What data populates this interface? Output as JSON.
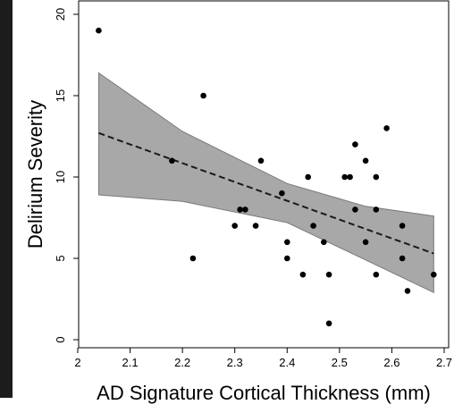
{
  "chart_data": {
    "type": "scatter",
    "xlabel": "AD Signature Cortical Thickness (mm)",
    "ylabel": "Delirium Severity",
    "xlim": [
      2,
      2.7
    ],
    "ylim": [
      0,
      20
    ],
    "x_ticks": [
      "2",
      "2.1",
      "2.2",
      "2.3",
      "2.4",
      "2.5",
      "2.6",
      "2.7"
    ],
    "y_ticks": [
      "0",
      "5",
      "10",
      "15",
      "20"
    ],
    "grid": false,
    "points": [
      {
        "x": 2.04,
        "y": 19
      },
      {
        "x": 2.18,
        "y": 11
      },
      {
        "x": 2.22,
        "y": 5
      },
      {
        "x": 2.24,
        "y": 15
      },
      {
        "x": 2.3,
        "y": 7
      },
      {
        "x": 2.31,
        "y": 8
      },
      {
        "x": 2.32,
        "y": 8
      },
      {
        "x": 2.34,
        "y": 7
      },
      {
        "x": 2.35,
        "y": 11
      },
      {
        "x": 2.39,
        "y": 9
      },
      {
        "x": 2.4,
        "y": 6
      },
      {
        "x": 2.4,
        "y": 5
      },
      {
        "x": 2.43,
        "y": 4
      },
      {
        "x": 2.44,
        "y": 10
      },
      {
        "x": 2.45,
        "y": 7
      },
      {
        "x": 2.47,
        "y": 6
      },
      {
        "x": 2.48,
        "y": 4
      },
      {
        "x": 2.48,
        "y": 1
      },
      {
        "x": 2.51,
        "y": 10
      },
      {
        "x": 2.52,
        "y": 10
      },
      {
        "x": 2.53,
        "y": 12
      },
      {
        "x": 2.53,
        "y": 8
      },
      {
        "x": 2.55,
        "y": 11
      },
      {
        "x": 2.55,
        "y": 6
      },
      {
        "x": 2.57,
        "y": 10
      },
      {
        "x": 2.57,
        "y": 8
      },
      {
        "x": 2.57,
        "y": 4
      },
      {
        "x": 2.59,
        "y": 13
      },
      {
        "x": 2.62,
        "y": 7
      },
      {
        "x": 2.62,
        "y": 5
      },
      {
        "x": 2.63,
        "y": 3
      },
      {
        "x": 2.68,
        "y": 4
      }
    ],
    "fit_line": {
      "style": "dashed",
      "x": [
        2.04,
        2.68
      ],
      "y": [
        12.7,
        5.3
      ]
    },
    "confidence_band": {
      "x": [
        2.04,
        2.2,
        2.4,
        2.55,
        2.68
      ],
      "upper": [
        16.4,
        12.8,
        9.6,
        8.2,
        7.6
      ],
      "lower": [
        8.9,
        8.5,
        7.2,
        4.9,
        2.9
      ]
    },
    "colors": {
      "points": "#000000",
      "band": "#a8a8a8",
      "band_edge": "#7a7a7a",
      "line": "#1a1a1a",
      "axis": "#000000"
    }
  }
}
